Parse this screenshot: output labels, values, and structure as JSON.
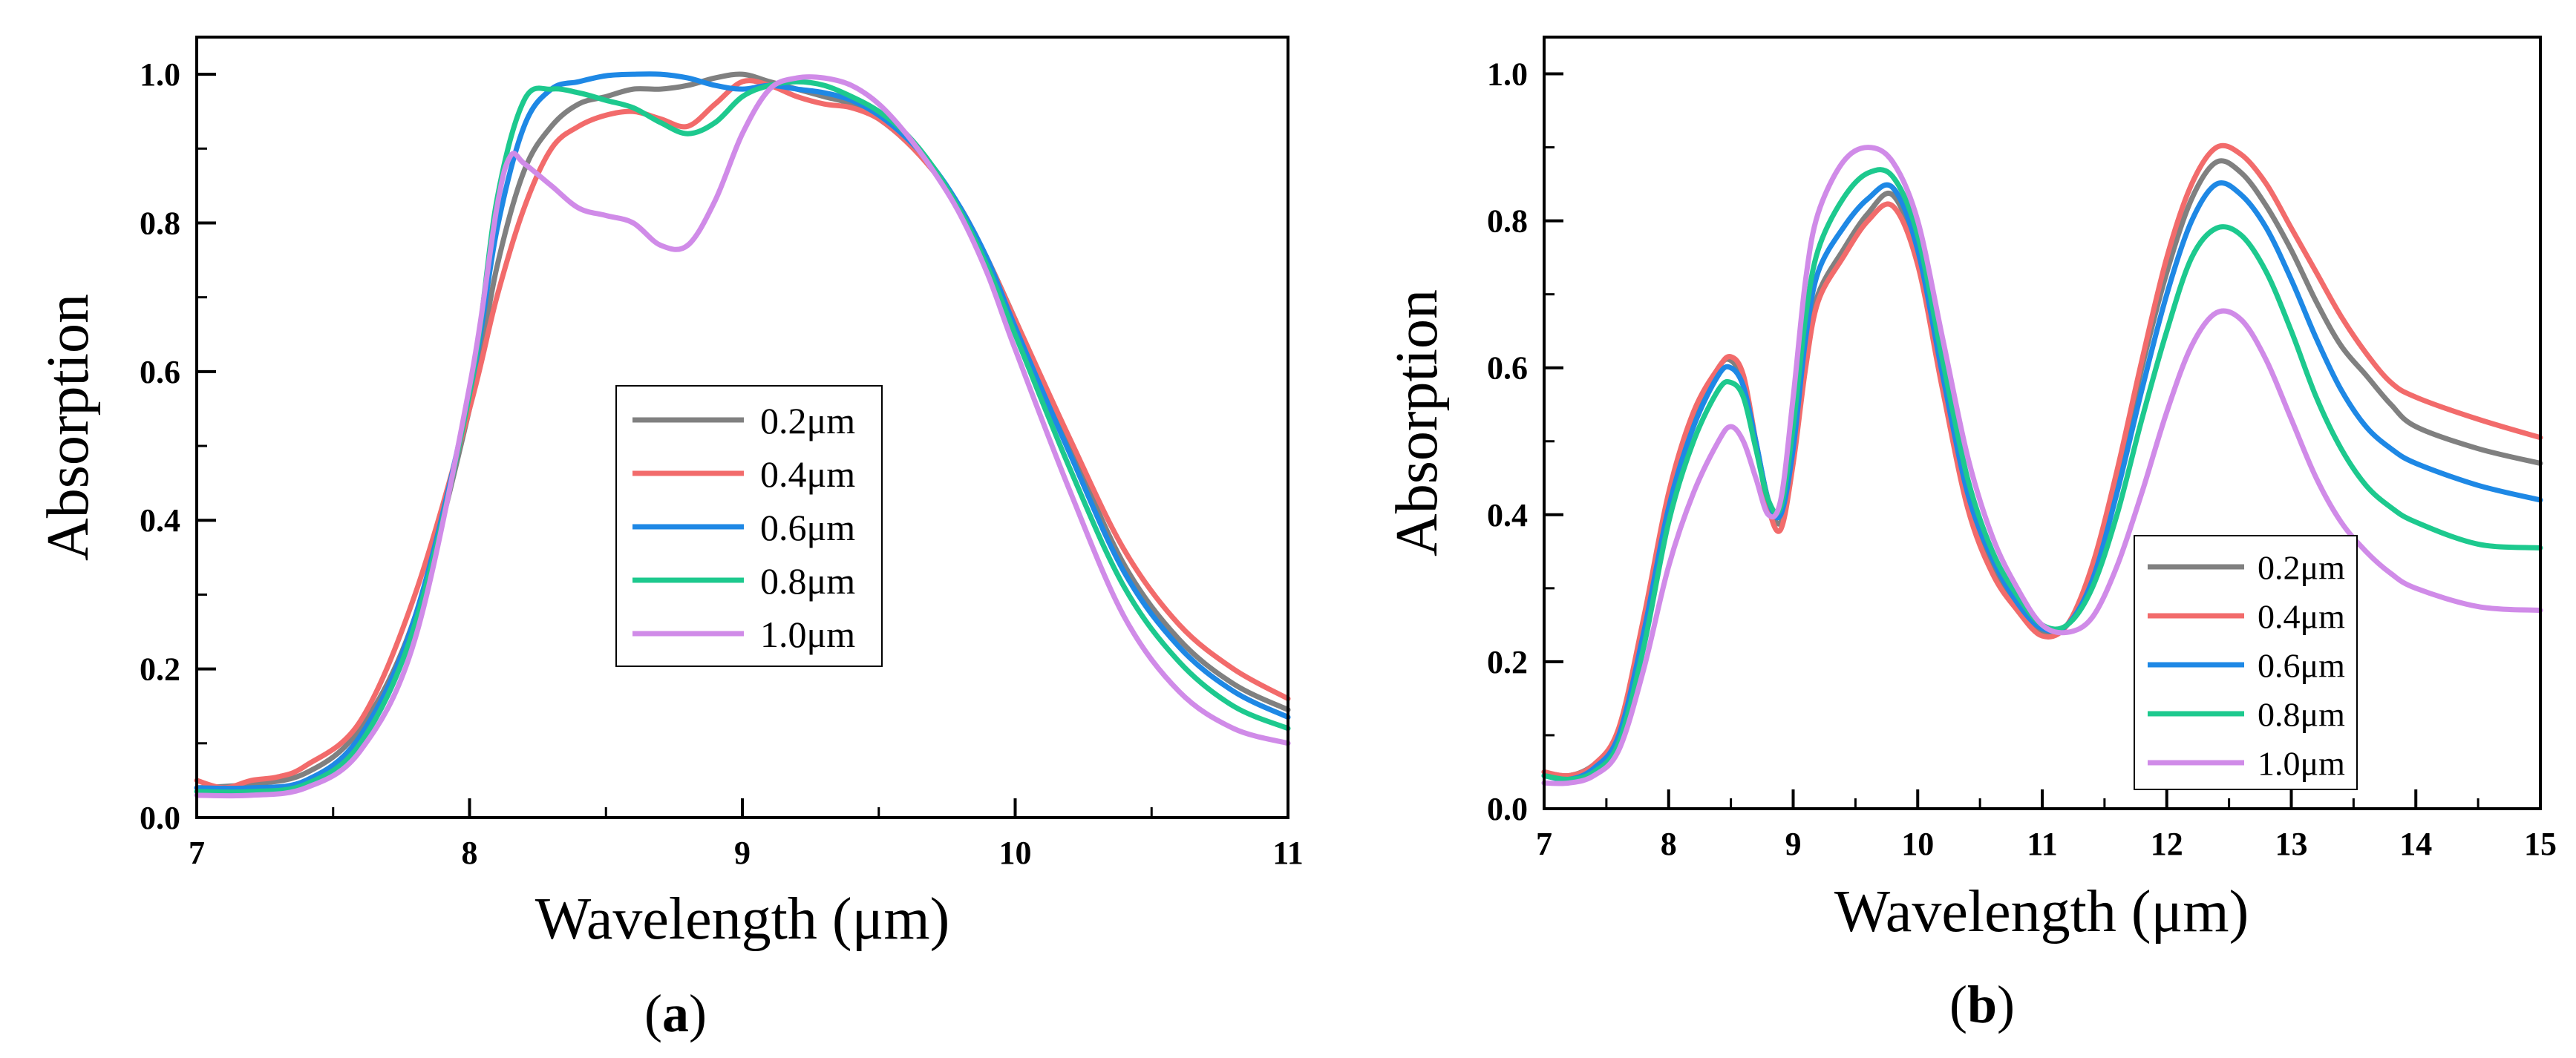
{
  "chart_data": [
    {
      "type": "line",
      "panel_label": "a",
      "caption_open": "(",
      "caption_close": ")",
      "xlabel": "Wavelength (μm)",
      "ylabel": "Absorption",
      "xlim": [
        7,
        11
      ],
      "ylim": [
        0,
        1.05
      ],
      "xticks": [
        7,
        8,
        9,
        10,
        11
      ],
      "yticks": [
        0.0,
        0.2,
        0.4,
        0.6,
        0.8,
        1.0
      ],
      "xtick_labels": [
        "7",
        "8",
        "9",
        "10",
        "11"
      ],
      "ytick_labels": [
        "0.0",
        "0.2",
        "0.4",
        "0.6",
        "0.8",
        "1.0"
      ],
      "legend_position": "center",
      "series": [
        {
          "name": "0.2μm",
          "color": "#808080",
          "x": [
            7.0,
            7.2,
            7.4,
            7.6,
            7.8,
            8.0,
            8.1,
            8.2,
            8.3,
            8.4,
            8.5,
            8.6,
            8.7,
            8.8,
            8.9,
            9.0,
            9.1,
            9.2,
            9.3,
            9.4,
            9.5,
            9.6,
            9.7,
            9.8,
            9.9,
            10.0,
            10.2,
            10.4,
            10.6,
            10.8,
            11.0
          ],
          "y": [
            0.04,
            0.045,
            0.06,
            0.12,
            0.27,
            0.55,
            0.74,
            0.87,
            0.93,
            0.96,
            0.97,
            0.98,
            0.98,
            0.985,
            0.995,
            1.0,
            0.99,
            0.98,
            0.97,
            0.96,
            0.94,
            0.91,
            0.87,
            0.82,
            0.75,
            0.67,
            0.5,
            0.34,
            0.24,
            0.18,
            0.145
          ]
        },
        {
          "name": "0.4μm",
          "color": "#F26B6B",
          "x": [
            7.0,
            7.1,
            7.2,
            7.3,
            7.4,
            7.6,
            7.8,
            8.0,
            8.1,
            8.2,
            8.3,
            8.4,
            8.5,
            8.6,
            8.7,
            8.8,
            8.9,
            9.0,
            9.1,
            9.2,
            9.3,
            9.4,
            9.5,
            9.6,
            9.7,
            9.8,
            9.9,
            10.0,
            10.2,
            10.4,
            10.6,
            10.8,
            11.0
          ],
          "y": [
            0.05,
            0.04,
            0.05,
            0.055,
            0.07,
            0.13,
            0.3,
            0.55,
            0.7,
            0.82,
            0.9,
            0.93,
            0.945,
            0.95,
            0.94,
            0.93,
            0.96,
            0.99,
            0.985,
            0.97,
            0.96,
            0.955,
            0.94,
            0.91,
            0.87,
            0.82,
            0.75,
            0.67,
            0.51,
            0.36,
            0.26,
            0.2,
            0.16
          ]
        },
        {
          "name": "0.6μm",
          "color": "#1E88E5",
          "x": [
            7.0,
            7.2,
            7.4,
            7.6,
            7.8,
            8.0,
            8.1,
            8.2,
            8.3,
            8.4,
            8.5,
            8.6,
            8.7,
            8.8,
            8.9,
            9.0,
            9.1,
            9.2,
            9.3,
            9.4,
            9.5,
            9.6,
            9.7,
            9.8,
            9.9,
            10.0,
            10.2,
            10.4,
            10.6,
            10.8,
            11.0
          ],
          "y": [
            0.04,
            0.04,
            0.05,
            0.11,
            0.27,
            0.57,
            0.79,
            0.93,
            0.98,
            0.99,
            0.998,
            1.0,
            1.0,
            0.995,
            0.985,
            0.98,
            0.985,
            0.98,
            0.975,
            0.965,
            0.945,
            0.915,
            0.875,
            0.82,
            0.75,
            0.66,
            0.49,
            0.33,
            0.23,
            0.17,
            0.135
          ]
        },
        {
          "name": "0.8μm",
          "color": "#1DC98E",
          "x": [
            7.0,
            7.2,
            7.4,
            7.6,
            7.8,
            8.0,
            8.1,
            8.2,
            8.3,
            8.4,
            8.5,
            8.6,
            8.7,
            8.8,
            8.9,
            9.0,
            9.1,
            9.2,
            9.3,
            9.4,
            9.5,
            9.6,
            9.7,
            9.8,
            9.9,
            10.0,
            10.2,
            10.4,
            10.6,
            10.8,
            11.0
          ],
          "y": [
            0.035,
            0.035,
            0.045,
            0.1,
            0.26,
            0.57,
            0.83,
            0.965,
            0.98,
            0.975,
            0.965,
            0.955,
            0.935,
            0.92,
            0.935,
            0.97,
            0.985,
            0.99,
            0.985,
            0.97,
            0.95,
            0.92,
            0.875,
            0.815,
            0.74,
            0.65,
            0.47,
            0.31,
            0.21,
            0.15,
            0.12
          ]
        },
        {
          "name": "1.0μm",
          "color": "#D08BE8",
          "x": [
            7.0,
            7.2,
            7.4,
            7.6,
            7.8,
            8.0,
            8.1,
            8.15,
            8.2,
            8.3,
            8.4,
            8.5,
            8.6,
            8.7,
            8.8,
            8.9,
            9.0,
            9.1,
            9.2,
            9.3,
            9.4,
            9.5,
            9.6,
            9.7,
            9.8,
            9.9,
            10.0,
            10.2,
            10.4,
            10.6,
            10.8,
            11.0
          ],
          "y": [
            0.03,
            0.03,
            0.04,
            0.09,
            0.24,
            0.58,
            0.82,
            0.89,
            0.88,
            0.85,
            0.82,
            0.81,
            0.8,
            0.77,
            0.77,
            0.83,
            0.92,
            0.98,
            0.995,
            0.995,
            0.985,
            0.96,
            0.92,
            0.87,
            0.81,
            0.73,
            0.63,
            0.44,
            0.27,
            0.17,
            0.12,
            0.1
          ]
        }
      ]
    },
    {
      "type": "line",
      "panel_label": "b",
      "caption_open": "(",
      "caption_close": ")",
      "xlabel": "Wavelength (μm)",
      "ylabel": "Absorption",
      "xlim": [
        7,
        15
      ],
      "ylim": [
        0,
        1.05
      ],
      "xticks": [
        7,
        8,
        9,
        10,
        11,
        12,
        13,
        14,
        15
      ],
      "yticks": [
        0.0,
        0.2,
        0.4,
        0.6,
        0.8,
        1.0
      ],
      "xtick_labels": [
        "7",
        "8",
        "9",
        "10",
        "11",
        "12",
        "13",
        "14",
        "15"
      ],
      "ytick_labels": [
        "0.0",
        "0.2",
        "0.4",
        "0.6",
        "0.8",
        "1.0"
      ],
      "legend_position": "bottom-right",
      "series": [
        {
          "name": "0.2μm",
          "color": "#808080",
          "x": [
            7.0,
            7.2,
            7.4,
            7.6,
            7.8,
            8.0,
            8.2,
            8.4,
            8.5,
            8.6,
            8.7,
            8.8,
            8.9,
            9.0,
            9.1,
            9.2,
            9.4,
            9.6,
            9.8,
            10.0,
            10.2,
            10.4,
            10.6,
            10.8,
            11.0,
            11.2,
            11.4,
            11.6,
            11.8,
            12.0,
            12.2,
            12.4,
            12.6,
            12.8,
            13.0,
            13.2,
            13.4,
            13.6,
            13.8,
            14.0,
            14.5,
            15.0
          ],
          "y": [
            0.05,
            0.045,
            0.06,
            0.1,
            0.25,
            0.42,
            0.53,
            0.6,
            0.61,
            0.58,
            0.5,
            0.42,
            0.39,
            0.48,
            0.62,
            0.7,
            0.76,
            0.81,
            0.835,
            0.75,
            0.58,
            0.42,
            0.33,
            0.27,
            0.24,
            0.25,
            0.32,
            0.45,
            0.6,
            0.73,
            0.83,
            0.88,
            0.865,
            0.82,
            0.76,
            0.69,
            0.63,
            0.59,
            0.55,
            0.52,
            0.49,
            0.47
          ]
        },
        {
          "name": "0.4μm",
          "color": "#F26B6B",
          "x": [
            7.0,
            7.2,
            7.4,
            7.6,
            7.8,
            8.0,
            8.2,
            8.4,
            8.5,
            8.6,
            8.7,
            8.8,
            8.9,
            9.0,
            9.1,
            9.2,
            9.4,
            9.6,
            9.8,
            10.0,
            10.2,
            10.4,
            10.6,
            10.8,
            11.0,
            11.2,
            11.4,
            11.6,
            11.8,
            12.0,
            12.2,
            12.4,
            12.6,
            12.8,
            13.0,
            13.2,
            13.4,
            13.6,
            13.8,
            14.0,
            14.5,
            15.0
          ],
          "y": [
            0.05,
            0.045,
            0.06,
            0.11,
            0.26,
            0.43,
            0.54,
            0.6,
            0.615,
            0.59,
            0.5,
            0.41,
            0.38,
            0.47,
            0.6,
            0.69,
            0.75,
            0.8,
            0.82,
            0.74,
            0.57,
            0.41,
            0.32,
            0.27,
            0.235,
            0.25,
            0.33,
            0.46,
            0.61,
            0.75,
            0.85,
            0.9,
            0.89,
            0.85,
            0.79,
            0.73,
            0.67,
            0.62,
            0.58,
            0.56,
            0.53,
            0.505
          ]
        },
        {
          "name": "0.6μm",
          "color": "#1E88E5",
          "x": [
            7.0,
            7.2,
            7.4,
            7.6,
            7.8,
            8.0,
            8.2,
            8.4,
            8.5,
            8.6,
            8.7,
            8.8,
            8.9,
            9.0,
            9.1,
            9.2,
            9.4,
            9.6,
            9.8,
            10.0,
            10.2,
            10.4,
            10.6,
            10.8,
            11.0,
            11.2,
            11.4,
            11.6,
            11.8,
            12.0,
            12.2,
            12.4,
            12.6,
            12.8,
            13.0,
            13.2,
            13.4,
            13.6,
            13.8,
            14.0,
            14.5,
            15.0
          ],
          "y": [
            0.045,
            0.04,
            0.055,
            0.1,
            0.24,
            0.41,
            0.52,
            0.59,
            0.6,
            0.575,
            0.5,
            0.42,
            0.4,
            0.49,
            0.64,
            0.73,
            0.79,
            0.83,
            0.845,
            0.76,
            0.59,
            0.43,
            0.34,
            0.28,
            0.245,
            0.25,
            0.31,
            0.43,
            0.57,
            0.7,
            0.8,
            0.85,
            0.835,
            0.79,
            0.72,
            0.64,
            0.57,
            0.52,
            0.49,
            0.47,
            0.44,
            0.42
          ]
        },
        {
          "name": "0.8μm",
          "color": "#1DC98E",
          "x": [
            7.0,
            7.2,
            7.4,
            7.6,
            7.8,
            8.0,
            8.2,
            8.4,
            8.5,
            8.6,
            8.7,
            8.8,
            8.9,
            9.0,
            9.1,
            9.2,
            9.4,
            9.6,
            9.8,
            10.0,
            10.2,
            10.4,
            10.6,
            10.8,
            11.0,
            11.2,
            11.4,
            11.6,
            11.8,
            12.0,
            12.2,
            12.4,
            12.6,
            12.8,
            13.0,
            13.2,
            13.4,
            13.6,
            13.8,
            14.0,
            14.5,
            15.0
          ],
          "y": [
            0.045,
            0.04,
            0.05,
            0.09,
            0.22,
            0.39,
            0.5,
            0.57,
            0.58,
            0.56,
            0.49,
            0.42,
            0.41,
            0.52,
            0.67,
            0.76,
            0.83,
            0.865,
            0.86,
            0.78,
            0.61,
            0.45,
            0.35,
            0.29,
            0.25,
            0.25,
            0.3,
            0.4,
            0.53,
            0.65,
            0.75,
            0.79,
            0.78,
            0.73,
            0.65,
            0.56,
            0.49,
            0.44,
            0.41,
            0.39,
            0.36,
            0.355
          ]
        },
        {
          "name": "1.0μm",
          "color": "#D08BE8",
          "x": [
            7.0,
            7.2,
            7.4,
            7.6,
            7.8,
            8.0,
            8.2,
            8.4,
            8.5,
            8.6,
            8.7,
            8.8,
            8.9,
            9.0,
            9.1,
            9.2,
            9.4,
            9.6,
            9.8,
            10.0,
            10.2,
            10.4,
            10.6,
            10.8,
            11.0,
            11.2,
            11.4,
            11.6,
            11.8,
            12.0,
            12.2,
            12.4,
            12.6,
            12.8,
            13.0,
            13.2,
            13.4,
            13.6,
            13.8,
            14.0,
            14.5,
            15.0
          ],
          "y": [
            0.035,
            0.035,
            0.045,
            0.08,
            0.19,
            0.33,
            0.43,
            0.5,
            0.52,
            0.5,
            0.45,
            0.4,
            0.42,
            0.56,
            0.72,
            0.81,
            0.88,
            0.9,
            0.88,
            0.8,
            0.64,
            0.48,
            0.37,
            0.3,
            0.25,
            0.24,
            0.26,
            0.33,
            0.43,
            0.54,
            0.63,
            0.675,
            0.665,
            0.61,
            0.53,
            0.45,
            0.39,
            0.35,
            0.32,
            0.3,
            0.275,
            0.27
          ]
        }
      ]
    }
  ]
}
